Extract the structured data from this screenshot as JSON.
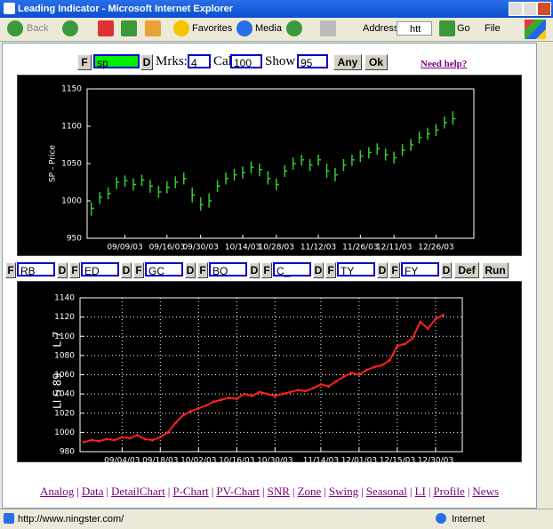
{
  "window": {
    "title": "Leading Indicator - Microsoft Internet Explorer"
  },
  "toolbar": {
    "back": "Back",
    "favorites": "Favorites",
    "media": "Media",
    "address_label": "Address",
    "address": "htt",
    "go": "Go",
    "menu": "File"
  },
  "form": {
    "f": "F",
    "symbol": "sp",
    "d": "D",
    "marks_label": "Mrks:",
    "marks": "4",
    "cal_label": "Cal",
    "cal": "100",
    "show_label": "Show",
    "show": "95",
    "any": "Any",
    "ok": "Ok",
    "help": "Need help?"
  },
  "chart_data": [
    {
      "type": "range-bar",
      "ylabel": "SP - Price",
      "color": "#33cc33",
      "grid": false,
      "categories": [
        null,
        null,
        null,
        null,
        "09/09/03",
        null,
        null,
        null,
        null,
        "09/16/03",
        null,
        null,
        null,
        "09/30/03",
        null,
        null,
        null,
        null,
        "10/14/03",
        null,
        null,
        null,
        "10/28/03",
        null,
        null,
        null,
        null,
        "11/12/03",
        null,
        null,
        null,
        null,
        "11/26/03",
        null,
        null,
        null,
        "12/11/03",
        null,
        null,
        null,
        null,
        "12/26/03",
        null,
        null,
        null,
        null
      ],
      "close": [
        990,
        1005,
        1010,
        1025,
        1027,
        1022,
        1028,
        1020,
        1012,
        1018,
        1025,
        1030,
        1008,
        995,
        1000,
        1020,
        1030,
        1035,
        1038,
        1045,
        1042,
        1030,
        1022,
        1040,
        1050,
        1055,
        1048,
        1055,
        1040,
        1035,
        1048,
        1055,
        1060,
        1065,
        1070,
        1062,
        1058,
        1068,
        1075,
        1085,
        1090,
        1095,
        1105,
        1110,
        null,
        null
      ],
      "high": [
        998,
        1012,
        1018,
        1032,
        1034,
        1030,
        1035,
        1028,
        1020,
        1026,
        1033,
        1038,
        1018,
        1005,
        1010,
        1028,
        1038,
        1043,
        1046,
        1053,
        1050,
        1040,
        1030,
        1048,
        1058,
        1062,
        1056,
        1062,
        1050,
        1044,
        1056,
        1062,
        1068,
        1072,
        1077,
        1070,
        1066,
        1076,
        1083,
        1093,
        1098,
        1103,
        1113,
        1120,
        null,
        null
      ],
      "low": [
        980,
        996,
        1002,
        1016,
        1019,
        1014,
        1020,
        1011,
        1004,
        1010,
        1017,
        1022,
        998,
        987,
        991,
        1012,
        1022,
        1027,
        1030,
        1037,
        1033,
        1022,
        1014,
        1032,
        1042,
        1047,
        1040,
        1047,
        1031,
        1026,
        1040,
        1047,
        1052,
        1057,
        1062,
        1054,
        1050,
        1060,
        1067,
        1077,
        1082,
        1087,
        1097,
        1102,
        null,
        null
      ],
      "ylim": [
        950,
        1150
      ],
      "yticks": [
        950,
        1000,
        1050,
        1100,
        1150
      ]
    },
    {
      "type": "line",
      "ylabel": "LI S 89",
      "ylabel2": "L 7",
      "color": "#ff2020",
      "grid": true,
      "categories": [
        null,
        null,
        null,
        null,
        null,
        "09/04/03",
        null,
        null,
        null,
        null,
        "09/18/03",
        null,
        null,
        null,
        null,
        "10/02/03",
        null,
        null,
        null,
        null,
        "10/16/03",
        null,
        null,
        null,
        null,
        "10/30/03",
        null,
        null,
        null,
        null,
        null,
        "11/14/03",
        null,
        null,
        null,
        null,
        "12/01/03",
        null,
        null,
        null,
        null,
        "12/15/03",
        null,
        null,
        null,
        null,
        "12/30/03",
        null,
        null,
        null
      ],
      "values": [
        990,
        992,
        991,
        993,
        992,
        995,
        994,
        997,
        993,
        992,
        995,
        1000,
        1010,
        1018,
        1022,
        1025,
        1028,
        1032,
        1034,
        1036,
        1035,
        1040,
        1038,
        1042,
        1040,
        1038,
        1040,
        1042,
        1044,
        1043,
        1046,
        1050,
        1048,
        1053,
        1058,
        1062,
        1060,
        1065,
        1068,
        1070,
        1075,
        1090,
        1092,
        1098,
        1115,
        1108,
        1118,
        1122,
        null,
        null
      ],
      "ylim": [
        980,
        1140
      ],
      "yticks": [
        980,
        1000,
        1020,
        1040,
        1060,
        1080,
        1100,
        1120,
        1140
      ]
    }
  ],
  "series_row": {
    "fields": [
      {
        "f": "F",
        "value": "RB",
        "d": "D"
      },
      {
        "f": "F",
        "value": "ED",
        "d": "D"
      },
      {
        "f": "F",
        "value": "GC",
        "d": "D"
      },
      {
        "f": "F",
        "value": "BO",
        "d": "D"
      },
      {
        "f": "F",
        "value": "C_",
        "d": "D"
      },
      {
        "f": "F",
        "value": "TY",
        "d": "D"
      },
      {
        "f": "F",
        "value": "FY",
        "d": "D"
      }
    ],
    "def": "Def",
    "run": "Run"
  },
  "links": [
    "Analog",
    "Data",
    "DetailChart",
    "P-Chart",
    "PV-Chart",
    "SNR",
    "Zone",
    "Swing",
    "Seasonal",
    "LI",
    "Profile",
    "News"
  ],
  "status": {
    "url": "http://www.ningster.com/",
    "zone": "Internet"
  }
}
